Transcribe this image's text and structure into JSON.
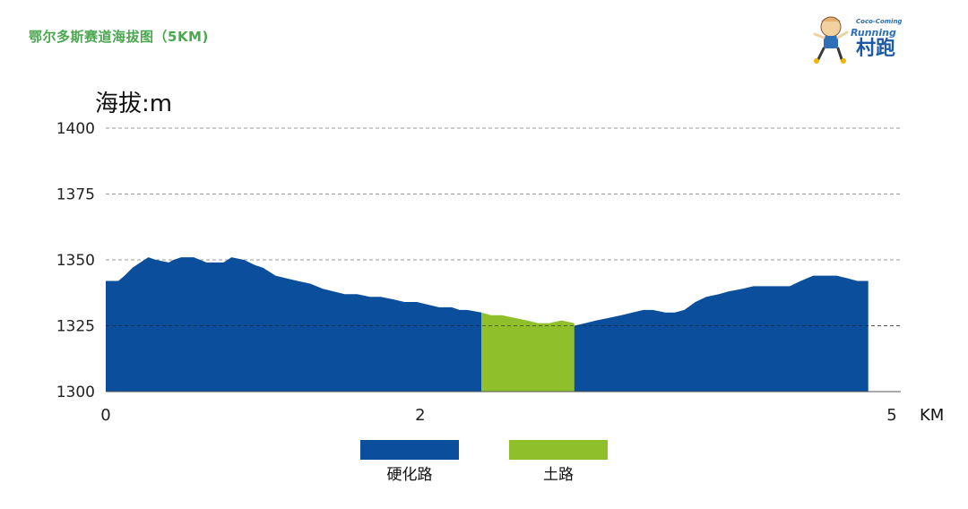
{
  "header": {
    "title": "鄂尔多斯赛道海拔图（5KM)"
  },
  "logo": {
    "small_text": "Coco-Coming",
    "running_text": "Running",
    "big_text": "村跑"
  },
  "colors": {
    "title": "#4aa84f",
    "paved": "#0b4f9c",
    "dirt": "#8fbf2a",
    "axis": "#555555"
  },
  "chart_data": {
    "type": "area",
    "ylabel": "海拔:m",
    "xlabel_unit": "KM",
    "ylim": [
      1300,
      1400
    ],
    "xlim": [
      0,
      5
    ],
    "y_ticks": [
      1400,
      1375,
      1350,
      1325,
      1300
    ],
    "x_ticks": [
      0,
      2,
      5
    ],
    "grid": "dashed horizontal",
    "legend_position": "bottom-center",
    "legend": [
      {
        "name": "硬化路",
        "color": "#0b4f9c"
      },
      {
        "name": "土路",
        "color": "#8fbf2a"
      }
    ],
    "series": [
      {
        "name": "硬化路",
        "points": [
          [
            0,
            1342
          ],
          [
            0.08,
            1342
          ],
          [
            0.12,
            1344
          ],
          [
            0.17,
            1347
          ],
          [
            0.22,
            1349
          ],
          [
            0.27,
            1351
          ],
          [
            0.32,
            1350
          ],
          [
            0.4,
            1349
          ],
          [
            0.43,
            1350
          ],
          [
            0.48,
            1351
          ],
          [
            0.56,
            1351
          ],
          [
            0.6,
            1350
          ],
          [
            0.64,
            1349
          ],
          [
            0.7,
            1349
          ],
          [
            0.75,
            1349
          ],
          [
            0.8,
            1351
          ],
          [
            0.88,
            1350
          ],
          [
            0.95,
            1348
          ],
          [
            1.0,
            1347
          ],
          [
            1.08,
            1344
          ],
          [
            1.15,
            1343
          ],
          [
            1.22,
            1342
          ],
          [
            1.3,
            1341
          ],
          [
            1.38,
            1339
          ],
          [
            1.45,
            1338
          ],
          [
            1.52,
            1337
          ],
          [
            1.6,
            1337
          ],
          [
            1.68,
            1336
          ],
          [
            1.75,
            1336
          ],
          [
            1.83,
            1335
          ],
          [
            1.9,
            1334
          ],
          [
            1.98,
            1334
          ],
          [
            2.05,
            1333
          ],
          [
            2.12,
            1332
          ],
          [
            2.2,
            1332
          ],
          [
            2.25,
            1331
          ],
          [
            2.3,
            1331
          ],
          [
            2.39,
            1330
          ],
          [
            2.39,
            1300
          ],
          [
            0,
            1300
          ]
        ]
      },
      {
        "name": "土路",
        "points": [
          [
            2.39,
            1330
          ],
          [
            2.45,
            1329
          ],
          [
            2.52,
            1329
          ],
          [
            2.6,
            1328
          ],
          [
            2.68,
            1327
          ],
          [
            2.75,
            1326
          ],
          [
            2.82,
            1326
          ],
          [
            2.9,
            1327
          ],
          [
            2.98,
            1326
          ],
          [
            2.98,
            1300
          ],
          [
            2.39,
            1300
          ]
        ]
      },
      {
        "name": "硬化路",
        "points": [
          [
            2.98,
            1325
          ],
          [
            3.05,
            1326
          ],
          [
            3.12,
            1327
          ],
          [
            3.2,
            1328
          ],
          [
            3.28,
            1329
          ],
          [
            3.35,
            1330
          ],
          [
            3.42,
            1331
          ],
          [
            3.48,
            1331
          ],
          [
            3.56,
            1330
          ],
          [
            3.62,
            1330
          ],
          [
            3.68,
            1331
          ],
          [
            3.75,
            1334
          ],
          [
            3.82,
            1336
          ],
          [
            3.9,
            1337
          ],
          [
            3.96,
            1338
          ],
          [
            4.05,
            1339
          ],
          [
            4.12,
            1340
          ],
          [
            4.2,
            1340
          ],
          [
            4.28,
            1340
          ],
          [
            4.35,
            1340
          ],
          [
            4.42,
            1342
          ],
          [
            4.5,
            1344
          ],
          [
            4.58,
            1344
          ],
          [
            4.65,
            1344
          ],
          [
            4.72,
            1343
          ],
          [
            4.78,
            1342
          ],
          [
            4.85,
            1342
          ],
          [
            4.85,
            1300
          ],
          [
            2.98,
            1300
          ]
        ]
      }
    ]
  }
}
